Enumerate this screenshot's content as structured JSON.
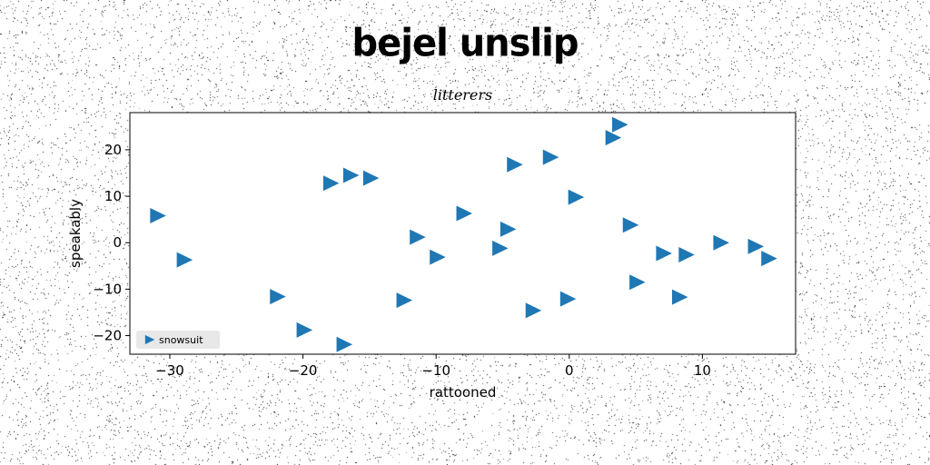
{
  "title": "bejel unslip",
  "chart_data": {
    "type": "scatter",
    "subtitle": "litterers",
    "xlabel": "rattooned",
    "ylabel": "speakably",
    "xlim": [
      -33,
      17
    ],
    "ylim": [
      -24,
      28
    ],
    "xticks": [
      -30,
      -20,
      -10,
      0,
      10
    ],
    "yticks": [
      -20,
      -10,
      0,
      10,
      20
    ],
    "grid": false,
    "legend_position": "lower-left",
    "marker": "triangle-right",
    "color": "#1f77b4",
    "series": [
      {
        "name": "snowsuit",
        "points": [
          [
            -31,
            5.8
          ],
          [
            -29,
            -3.7
          ],
          [
            -22,
            -11.6
          ],
          [
            -20,
            -18.8
          ],
          [
            -18,
            12.8
          ],
          [
            -17,
            -21.9
          ],
          [
            -16.5,
            14.5
          ],
          [
            -15,
            13.9
          ],
          [
            -12.5,
            -12.4
          ],
          [
            -11.5,
            1.2
          ],
          [
            -10,
            -3.1
          ],
          [
            -8,
            6.3
          ],
          [
            -5.3,
            -1.2
          ],
          [
            -4.7,
            2.9
          ],
          [
            -4.2,
            16.8
          ],
          [
            -2.8,
            -14.6
          ],
          [
            -1.5,
            18.4
          ],
          [
            -0.2,
            -12.1
          ],
          [
            0.4,
            9.8
          ],
          [
            3.2,
            22.6
          ],
          [
            3.7,
            25.4
          ],
          [
            4.5,
            3.8
          ],
          [
            5,
            -8.5
          ],
          [
            7,
            -2.3
          ],
          [
            8.2,
            -11.7
          ],
          [
            8.7,
            -2.6
          ],
          [
            11.3,
            0
          ],
          [
            13.9,
            -0.8
          ],
          [
            14.9,
            -3.4
          ]
        ]
      }
    ]
  }
}
